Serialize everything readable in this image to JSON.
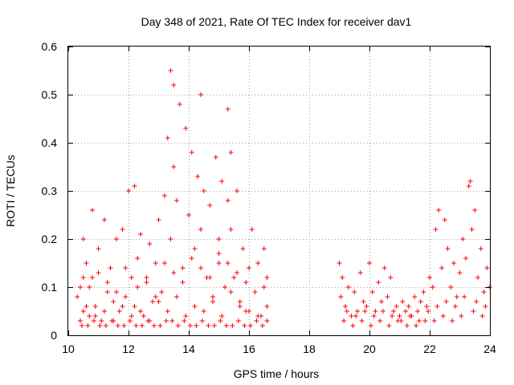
{
  "chart_data": {
    "type": "scatter",
    "title": "Day 348 of 2021, Rate Of TEC Index for receiver dav1",
    "xlabel": "GPS time / hours",
    "ylabel": "ROTI / TECUs",
    "xlim": [
      10,
      24
    ],
    "ylim": [
      0,
      0.6
    ],
    "xticks": [
      10,
      12,
      14,
      16,
      18,
      20,
      22,
      24
    ],
    "yticks": [
      0,
      0.1,
      0.2,
      0.3,
      0.4,
      0.5,
      0.6
    ],
    "xtick_labels": [
      "10",
      "12",
      "14",
      "16",
      "18",
      "20",
      "22",
      "24"
    ],
    "ytick_labels": [
      "0",
      "0.1",
      "0.2",
      "0.3",
      "0.4",
      "0.5",
      "0.6"
    ],
    "grid": true,
    "marker": "plus",
    "color": "#ff0000",
    "series": [
      {
        "x": [
          10.3,
          10.4,
          10.5,
          10.5,
          10.6,
          10.7,
          10.8,
          10.8,
          10.9,
          11.0,
          11.1,
          11.2,
          11.3,
          11.4,
          11.5,
          11.6,
          11.7,
          11.8,
          11.9,
          12.0,
          12.1,
          12.2,
          12.2,
          12.3,
          12.4,
          12.5,
          12.6,
          12.7,
          12.8,
          12.9,
          13.0,
          13.1,
          13.2,
          13.3,
          13.4,
          13.4,
          13.5,
          13.5,
          13.6,
          13.7,
          13.8,
          13.9,
          14.0,
          14.1,
          14.2,
          14.3,
          14.4,
          14.4,
          14.5,
          14.6,
          14.7,
          14.8,
          14.9,
          15.0,
          15.0,
          15.1,
          15.2,
          15.3,
          15.3,
          15.4,
          15.4,
          15.5,
          15.6,
          15.7,
          15.8,
          15.9,
          16.0,
          16.1,
          16.2,
          16.3,
          16.4,
          16.5,
          16.6,
          16.6,
          10.4,
          10.6,
          10.9,
          11.2,
          11.5,
          11.8,
          12.1,
          12.4,
          12.7,
          13.0,
          13.3,
          13.6,
          13.9,
          14.2,
          14.5,
          14.8,
          15.1,
          15.4,
          15.7,
          16.0,
          16.3,
          16.6,
          10.5,
          10.7,
          11.0,
          11.3,
          11.6,
          11.9,
          12.3,
          12.6,
          12.9,
          13.2,
          13.5,
          13.8,
          14.1,
          14.4,
          14.7,
          15.0,
          15.3,
          15.6,
          15.9,
          16.2,
          16.5,
          10.45,
          10.65,
          10.85,
          11.05,
          11.25,
          11.45,
          11.65,
          11.85,
          12.05,
          12.25,
          12.45,
          12.65,
          12.85,
          13.05,
          13.25,
          13.45,
          13.65,
          13.85,
          14.05,
          14.25,
          14.45,
          14.65,
          14.85,
          15.05,
          15.25,
          15.45,
          15.65,
          15.85,
          16.05,
          16.25,
          16.45
        ],
        "y": [
          0.08,
          0.1,
          0.2,
          0.05,
          0.15,
          0.04,
          0.26,
          0.12,
          0.06,
          0.18,
          0.03,
          0.24,
          0.09,
          0.14,
          0.07,
          0.2,
          0.05,
          0.22,
          0.08,
          0.3,
          0.12,
          0.31,
          0.06,
          0.16,
          0.21,
          0.04,
          0.11,
          0.19,
          0.07,
          0.15,
          0.24,
          0.09,
          0.29,
          0.41,
          0.55,
          0.2,
          0.52,
          0.35,
          0.28,
          0.48,
          0.14,
          0.43,
          0.25,
          0.38,
          0.18,
          0.33,
          0.5,
          0.22,
          0.3,
          0.12,
          0.27,
          0.08,
          0.37,
          0.2,
          0.15,
          0.32,
          0.1,
          0.47,
          0.28,
          0.38,
          0.22,
          0.12,
          0.3,
          0.07,
          0.18,
          0.05,
          0.14,
          0.22,
          0.09,
          0.15,
          0.04,
          0.18,
          0.12,
          0.06,
          0.03,
          0.06,
          0.04,
          0.05,
          0.03,
          0.06,
          0.04,
          0.05,
          0.03,
          0.07,
          0.05,
          0.08,
          0.04,
          0.06,
          0.05,
          0.07,
          0.04,
          0.09,
          0.06,
          0.05,
          0.04,
          0.03,
          0.12,
          0.1,
          0.13,
          0.11,
          0.09,
          0.14,
          0.1,
          0.12,
          0.08,
          0.15,
          0.13,
          0.11,
          0.16,
          0.14,
          0.12,
          0.17,
          0.15,
          0.13,
          0.11,
          0.09,
          0.1,
          0.02,
          0.02,
          0.03,
          0.02,
          0.02,
          0.03,
          0.02,
          0.02,
          0.03,
          0.02,
          0.02,
          0.03,
          0.02,
          0.02,
          0.03,
          0.03,
          0.02,
          0.03,
          0.02,
          0.02,
          0.03,
          0.02,
          0.02,
          0.03,
          0.02,
          0.02,
          0.03,
          0.02,
          0.02,
          0.03,
          0.02
        ]
      },
      {
        "x": [
          19.0,
          19.05,
          19.1,
          19.2,
          19.3,
          19.4,
          19.5,
          19.6,
          19.7,
          19.8,
          19.9,
          20.0,
          20.1,
          20.2,
          20.3,
          20.4,
          20.5,
          20.6,
          20.7,
          20.8,
          20.9,
          21.0,
          21.1,
          21.2,
          21.3,
          21.4,
          21.5,
          21.6,
          21.7,
          21.8,
          21.9,
          22.0,
          22.1,
          22.2,
          22.3,
          22.4,
          22.5,
          22.6,
          22.7,
          22.8,
          22.9,
          23.0,
          23.1,
          23.2,
          23.3,
          23.35,
          23.4,
          23.5,
          23.6,
          23.7,
          23.8,
          23.9,
          24.0,
          19.15,
          19.45,
          19.75,
          20.05,
          20.35,
          20.65,
          20.95,
          21.25,
          21.55,
          21.85,
          22.15,
          22.45,
          22.75,
          23.05,
          23.45,
          23.75,
          19.25,
          19.55,
          19.85,
          20.15,
          20.45,
          20.75,
          21.05,
          21.35,
          21.65,
          21.95,
          22.25,
          22.55,
          22.85,
          23.15,
          23.55,
          23.85
        ],
        "y": [
          0.15,
          0.08,
          0.12,
          0.06,
          0.1,
          0.04,
          0.09,
          0.05,
          0.13,
          0.07,
          0.06,
          0.15,
          0.09,
          0.05,
          0.11,
          0.07,
          0.14,
          0.08,
          0.12,
          0.05,
          0.06,
          0.04,
          0.07,
          0.05,
          0.06,
          0.04,
          0.08,
          0.05,
          0.07,
          0.09,
          0.06,
          0.12,
          0.1,
          0.22,
          0.26,
          0.14,
          0.24,
          0.18,
          0.1,
          0.15,
          0.08,
          0.13,
          0.2,
          0.16,
          0.31,
          0.32,
          0.22,
          0.26,
          0.12,
          0.18,
          0.09,
          0.14,
          0.1,
          0.03,
          0.02,
          0.03,
          0.02,
          0.03,
          0.02,
          0.03,
          0.02,
          0.02,
          0.03,
          0.03,
          0.04,
          0.03,
          0.04,
          0.05,
          0.04,
          0.05,
          0.04,
          0.05,
          0.04,
          0.05,
          0.04,
          0.03,
          0.04,
          0.03,
          0.05,
          0.06,
          0.07,
          0.06,
          0.08,
          0.07,
          0.06
        ]
      }
    ]
  }
}
